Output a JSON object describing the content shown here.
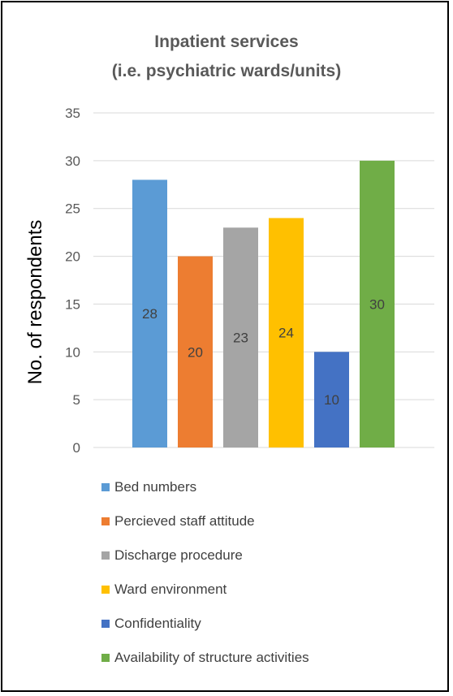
{
  "chart_data": {
    "type": "bar",
    "title_line1": "Inpatient services",
    "title_line2": "(i.e. psychiatric wards/units)",
    "ylabel": "No. of respondents",
    "ylim": [
      0,
      35
    ],
    "yticks": [
      0,
      5,
      10,
      15,
      20,
      25,
      30,
      35
    ],
    "grid": true,
    "legend_position": "bottom",
    "series": [
      {
        "name": "Bed numbers",
        "value": 28,
        "color": "#5b9bd5"
      },
      {
        "name": "Percieved staff attitude",
        "value": 20,
        "color": "#ed7d31"
      },
      {
        "name": "Discharge procedure",
        "value": 23,
        "color": "#a5a5a5"
      },
      {
        "name": "Ward environment",
        "value": 24,
        "color": "#ffc000"
      },
      {
        "name": "Confidentiality",
        "value": 10,
        "color": "#4472c4"
      },
      {
        "name": "Availability of structure activities",
        "value": 30,
        "color": "#70ad47"
      }
    ]
  }
}
